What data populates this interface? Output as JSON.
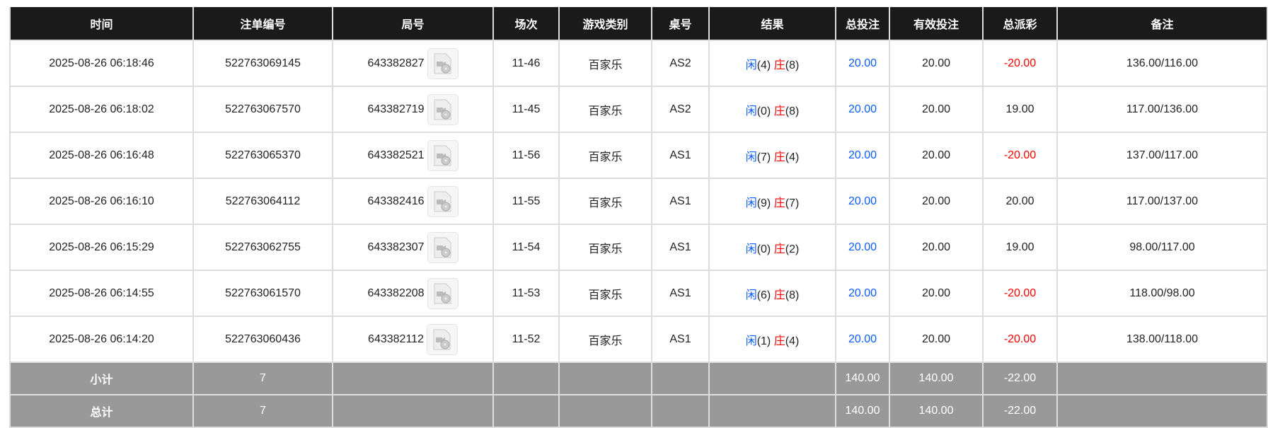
{
  "headers": [
    "时间",
    "注单编号",
    "局号",
    "场次",
    "游戏类别",
    "桌号",
    "结果",
    "总投注",
    "有效投注",
    "总派彩",
    "备注"
  ],
  "rows": [
    {
      "time": "2025-08-26 06:18:46",
      "bet_id": "522763069145",
      "round": "643382827",
      "session": "11-46",
      "game": "百家乐",
      "table": "AS2",
      "player_label": "闲",
      "player": "(4)",
      "banker_label": "庄",
      "banker": "(8)",
      "total_bet": "20.00",
      "valid_bet": "20.00",
      "payout": "-20.00",
      "payout_neg": true,
      "note": "136.00/116.00"
    },
    {
      "time": "2025-08-26 06:18:02",
      "bet_id": "522763067570",
      "round": "643382719",
      "session": "11-45",
      "game": "百家乐",
      "table": "AS2",
      "player_label": "闲",
      "player": "(0)",
      "banker_label": "庄",
      "banker": "(8)",
      "total_bet": "20.00",
      "valid_bet": "20.00",
      "payout": "19.00",
      "payout_neg": false,
      "note": "117.00/136.00"
    },
    {
      "time": "2025-08-26 06:16:48",
      "bet_id": "522763065370",
      "round": "643382521",
      "session": "11-56",
      "game": "百家乐",
      "table": "AS1",
      "player_label": "闲",
      "player": "(7)",
      "banker_label": "庄",
      "banker": "(4)",
      "total_bet": "20.00",
      "valid_bet": "20.00",
      "payout": "-20.00",
      "payout_neg": true,
      "note": "137.00/117.00"
    },
    {
      "time": "2025-08-26 06:16:10",
      "bet_id": "522763064112",
      "round": "643382416",
      "session": "11-55",
      "game": "百家乐",
      "table": "AS1",
      "player_label": "闲",
      "player": "(9)",
      "banker_label": "庄",
      "banker": "(7)",
      "total_bet": "20.00",
      "valid_bet": "20.00",
      "payout": "20.00",
      "payout_neg": false,
      "note": "117.00/137.00"
    },
    {
      "time": "2025-08-26 06:15:29",
      "bet_id": "522763062755",
      "round": "643382307",
      "session": "11-54",
      "game": "百家乐",
      "table": "AS1",
      "player_label": "闲",
      "player": "(0)",
      "banker_label": "庄",
      "banker": "(2)",
      "total_bet": "20.00",
      "valid_bet": "20.00",
      "payout": "19.00",
      "payout_neg": false,
      "note": "98.00/117.00"
    },
    {
      "time": "2025-08-26 06:14:55",
      "bet_id": "522763061570",
      "round": "643382208",
      "session": "11-53",
      "game": "百家乐",
      "table": "AS1",
      "player_label": "闲",
      "player": "(6)",
      "banker_label": "庄",
      "banker": "(8)",
      "total_bet": "20.00",
      "valid_bet": "20.00",
      "payout": "-20.00",
      "payout_neg": true,
      "note": "118.00/98.00"
    },
    {
      "time": "2025-08-26 06:14:20",
      "bet_id": "522763060436",
      "round": "643382112",
      "session": "11-52",
      "game": "百家乐",
      "table": "AS1",
      "player_label": "闲",
      "player": "(1)",
      "banker_label": "庄",
      "banker": "(4)",
      "total_bet": "20.00",
      "valid_bet": "20.00",
      "payout": "-20.00",
      "payout_neg": true,
      "note": "138.00/118.00"
    }
  ],
  "summary": [
    {
      "label": "小计",
      "count": "7",
      "total_bet": "140.00",
      "valid_bet": "140.00",
      "payout": "-22.00"
    },
    {
      "label": "总计",
      "count": "7",
      "total_bet": "140.00",
      "valid_bet": "140.00",
      "payout": "-22.00"
    }
  ],
  "colors": {
    "header_bg": "#1a1a1a",
    "player": "#0a5cff",
    "negative": "#ff0000",
    "summary_bg": "#999999"
  },
  "icons": {
    "replay": "video-replay-icon"
  }
}
